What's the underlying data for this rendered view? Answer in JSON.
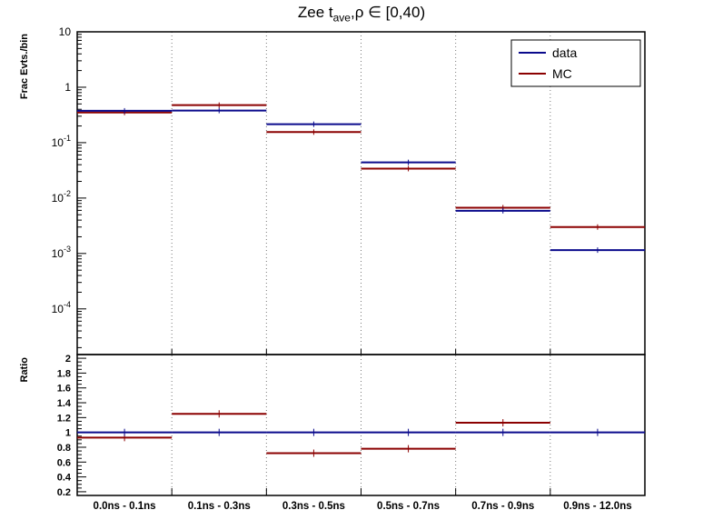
{
  "title": {
    "prefix": "Zee t",
    "subscript": "ave",
    "suffix": ",ρ ∈ [0,40)"
  },
  "legend": {
    "items": [
      {
        "label": "data",
        "color": "#0a0a8c"
      },
      {
        "label": "MC",
        "color": "#8b0000"
      }
    ]
  },
  "colors": {
    "data": "#0a0a8c",
    "mc": "#8b0000",
    "frame": "#000000",
    "grid": "#777777",
    "background": "#ffffff"
  },
  "chart_data": [
    {
      "type": "line",
      "panel": "top",
      "title": "Zee t_ave,ρ ∈ [0,40)",
      "ylabel": "Frac Evts./bin",
      "yscale": "log",
      "ylim": [
        1.5e-05,
        10
      ],
      "grid": "vertical-dotted",
      "legend_position": "top-right",
      "categories": [
        "0.0ns - 0.1ns",
        "0.1ns - 0.3ns",
        "0.3ns - 0.5ns",
        "0.5ns - 0.7ns",
        "0.7ns - 0.9ns",
        "0.9ns - 12.0ns"
      ],
      "series": [
        {
          "name": "data",
          "color": "#0a0a8c",
          "values": [
            0.375,
            0.38,
            0.215,
            0.044,
            0.0059,
            0.00115
          ]
        },
        {
          "name": "MC",
          "color": "#8b0000",
          "values": [
            0.35,
            0.475,
            0.155,
            0.034,
            0.0067,
            0.003
          ]
        }
      ],
      "yticks": [
        {
          "value": 10,
          "base": "10",
          "exp": ""
        },
        {
          "value": 1,
          "base": "1",
          "exp": ""
        },
        {
          "value": 0.1,
          "base": "10",
          "exp": "-1"
        },
        {
          "value": 0.01,
          "base": "10",
          "exp": "-2"
        },
        {
          "value": 0.001,
          "base": "10",
          "exp": "-3"
        },
        {
          "value": 0.0001,
          "base": "10",
          "exp": "-4"
        }
      ]
    },
    {
      "type": "line",
      "panel": "bottom",
      "ylabel": "Ratio",
      "yscale": "linear",
      "ylim": [
        0.15,
        2.05
      ],
      "categories": [
        "0.0ns - 0.1ns",
        "0.1ns - 0.3ns",
        "0.3ns - 0.5ns",
        "0.5ns - 0.7ns",
        "0.7ns - 0.9ns",
        "0.9ns - 12.0ns"
      ],
      "series": [
        {
          "name": "data",
          "color": "#0a0a8c",
          "values": [
            1,
            1,
            1,
            1,
            1,
            1
          ]
        },
        {
          "name": "MC/data",
          "color": "#8b0000",
          "values": [
            0.93,
            1.25,
            0.72,
            0.78,
            1.13,
            null
          ]
        }
      ],
      "yticks": [
        {
          "value": 0.2,
          "label": "0.2"
        },
        {
          "value": 0.4,
          "label": "0.4"
        },
        {
          "value": 0.6,
          "label": "0.6"
        },
        {
          "value": 0.8,
          "label": "0.8"
        },
        {
          "value": 1,
          "label": "1"
        },
        {
          "value": 1.2,
          "label": "1.2"
        },
        {
          "value": 1.4,
          "label": "1.4"
        },
        {
          "value": 1.6,
          "label": "1.6"
        },
        {
          "value": 1.8,
          "label": "1.8"
        },
        {
          "value": 2,
          "label": "2"
        }
      ]
    }
  ]
}
